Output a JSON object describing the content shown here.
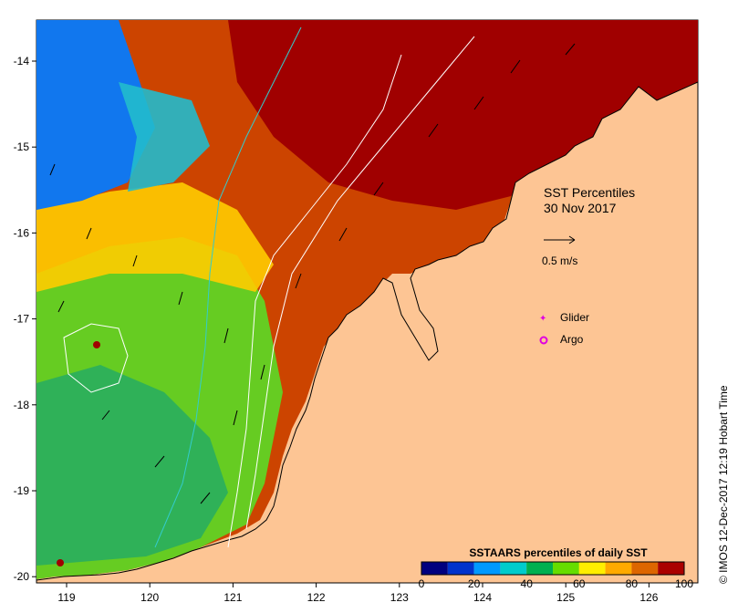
{
  "title": {
    "line1": "SST Percentiles",
    "line2": "30 Nov 2017"
  },
  "legend": {
    "arrow_scale_label": "0.5 m/s",
    "glider_label": "Glider",
    "argo_label": "Argo",
    "glider_color": "#e000e0",
    "argo_color": "#e000e0"
  },
  "colorbar": {
    "title": "SSTAARS percentiles of daily SST",
    "ticks": [
      "0",
      "20",
      "40",
      "60",
      "80",
      "100"
    ],
    "colors": [
      "#00007f",
      "#0033cc",
      "#0099ff",
      "#00cccc",
      "#00b050",
      "#66dd00",
      "#ffee00",
      "#ffaa00",
      "#dd6600",
      "#aa0000"
    ]
  },
  "axes": {
    "x_ticks": [
      "119",
      "120",
      "121",
      "122",
      "123",
      "124",
      "125",
      "126"
    ],
    "y_ticks": [
      "-14",
      "-15",
      "-16",
      "-17",
      "-18",
      "-19",
      "-20"
    ]
  },
  "credit": "© IMOS 12-Dec-2017 12:19 Hobart Time",
  "colors": {
    "land": "#fdc594",
    "contour": "#ffffff",
    "contour_cyan": "#33cccc"
  }
}
